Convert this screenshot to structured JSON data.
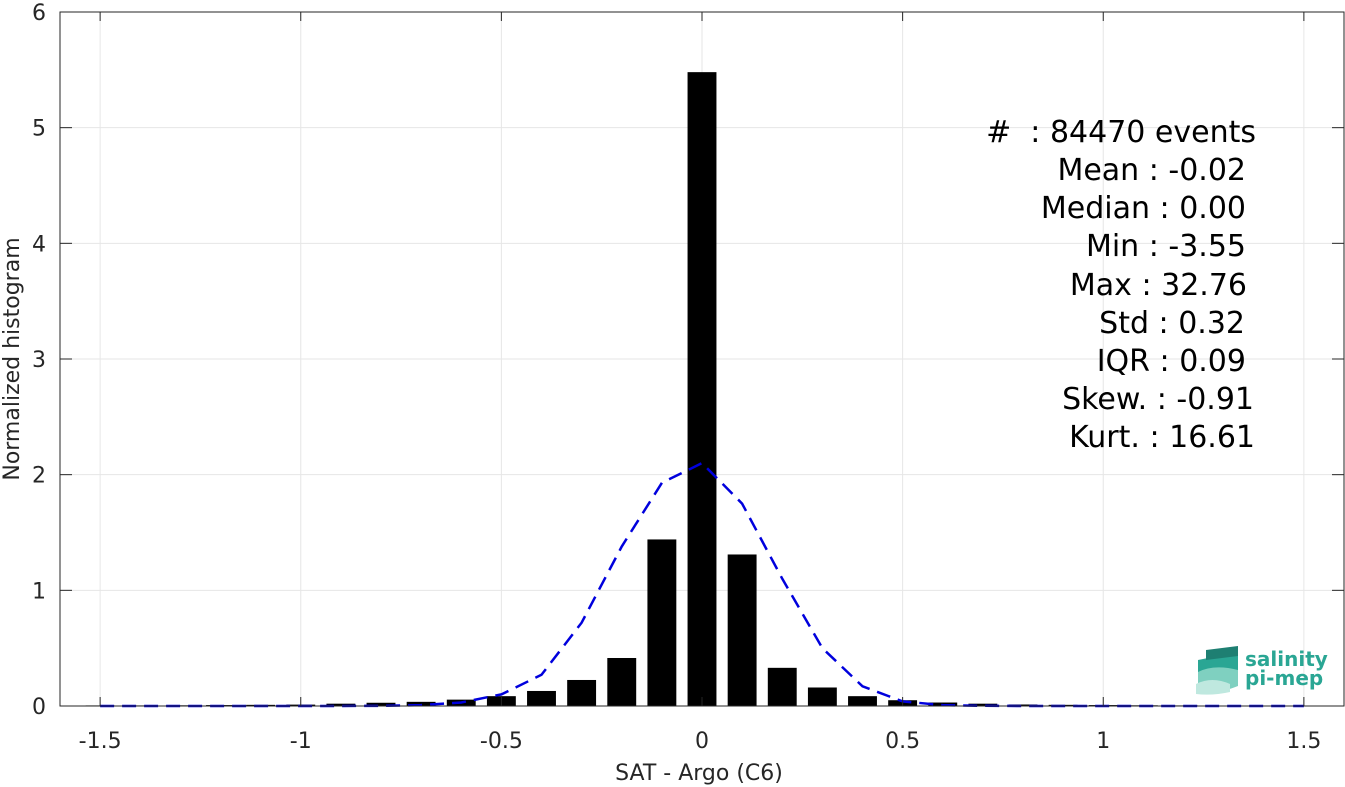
{
  "chart_data": {
    "type": "bar",
    "xlabel": "SAT - Argo (C6)",
    "ylabel": "Normalized histogram",
    "xlim": [
      -1.6,
      1.6
    ],
    "ylim": [
      0,
      6
    ],
    "xticks": [
      -1.5,
      -1,
      -0.5,
      0,
      0.5,
      1,
      1.5
    ],
    "xtick_labels": [
      "-1.5",
      "-1",
      "-0.5",
      "0",
      "0.5",
      "1",
      "1.5"
    ],
    "yticks": [
      0,
      1,
      2,
      3,
      4,
      5,
      6
    ],
    "ytick_labels": [
      "0",
      "1",
      "2",
      "3",
      "4",
      "5",
      "6"
    ],
    "grid": true,
    "bin_width": 0.1,
    "bars": {
      "x": [
        -1.5,
        -1.4,
        -1.3,
        -1.2,
        -1.1,
        -1.0,
        -0.9,
        -0.8,
        -0.7,
        -0.6,
        -0.5,
        -0.4,
        -0.3,
        -0.2,
        -0.1,
        0.0,
        0.1,
        0.2,
        0.3,
        0.4,
        0.5,
        0.6,
        0.7,
        0.8,
        0.9,
        1.0,
        1.1,
        1.2,
        1.3,
        1.4,
        1.5
      ],
      "values": [
        0.005,
        0.005,
        0.006,
        0.008,
        0.01,
        0.012,
        0.02,
        0.028,
        0.036,
        0.055,
        0.085,
        0.13,
        0.225,
        0.415,
        1.44,
        5.48,
        1.31,
        0.33,
        0.16,
        0.085,
        0.05,
        0.03,
        0.02,
        0.013,
        0.01,
        0.008,
        0.006,
        0.005,
        0.004,
        0.004,
        0.004
      ],
      "color": "#000000"
    },
    "fit_curve": {
      "style": "dashed",
      "color": "#0000dd",
      "x": [
        -1.5,
        -1.4,
        -1.3,
        -1.2,
        -1.1,
        -1.0,
        -0.9,
        -0.8,
        -0.7,
        -0.6,
        -0.5,
        -0.4,
        -0.3,
        -0.2,
        -0.1,
        0.0,
        0.1,
        0.2,
        0.3,
        0.4,
        0.5,
        0.6,
        0.7,
        0.8,
        0.9,
        1.0,
        1.1,
        1.2,
        1.3,
        1.4,
        1.5
      ],
      "y": [
        0.0,
        0.0,
        0.0,
        0.0,
        0.0,
        0.0,
        0.0,
        0.002,
        0.008,
        0.03,
        0.1,
        0.27,
        0.72,
        1.38,
        1.93,
        2.1,
        1.75,
        1.1,
        0.5,
        0.17,
        0.04,
        0.008,
        0.002,
        0.0,
        0.0,
        0.0,
        0.0,
        0.0,
        0.0,
        0.0,
        0.0
      ]
    }
  },
  "stats": {
    "count_line": "#  : 84470 events",
    "lines": [
      "Mean : -0.02",
      "Median : 0.00",
      "Min : -3.55",
      "Max : 32.76",
      "Std : 0.32",
      "IQR : 0.09",
      "Skew. : -0.91",
      "Kurt. : 16.61"
    ]
  },
  "logo": {
    "line1": "salinity",
    "line2": "pi-mep",
    "color": "#2aa694"
  }
}
